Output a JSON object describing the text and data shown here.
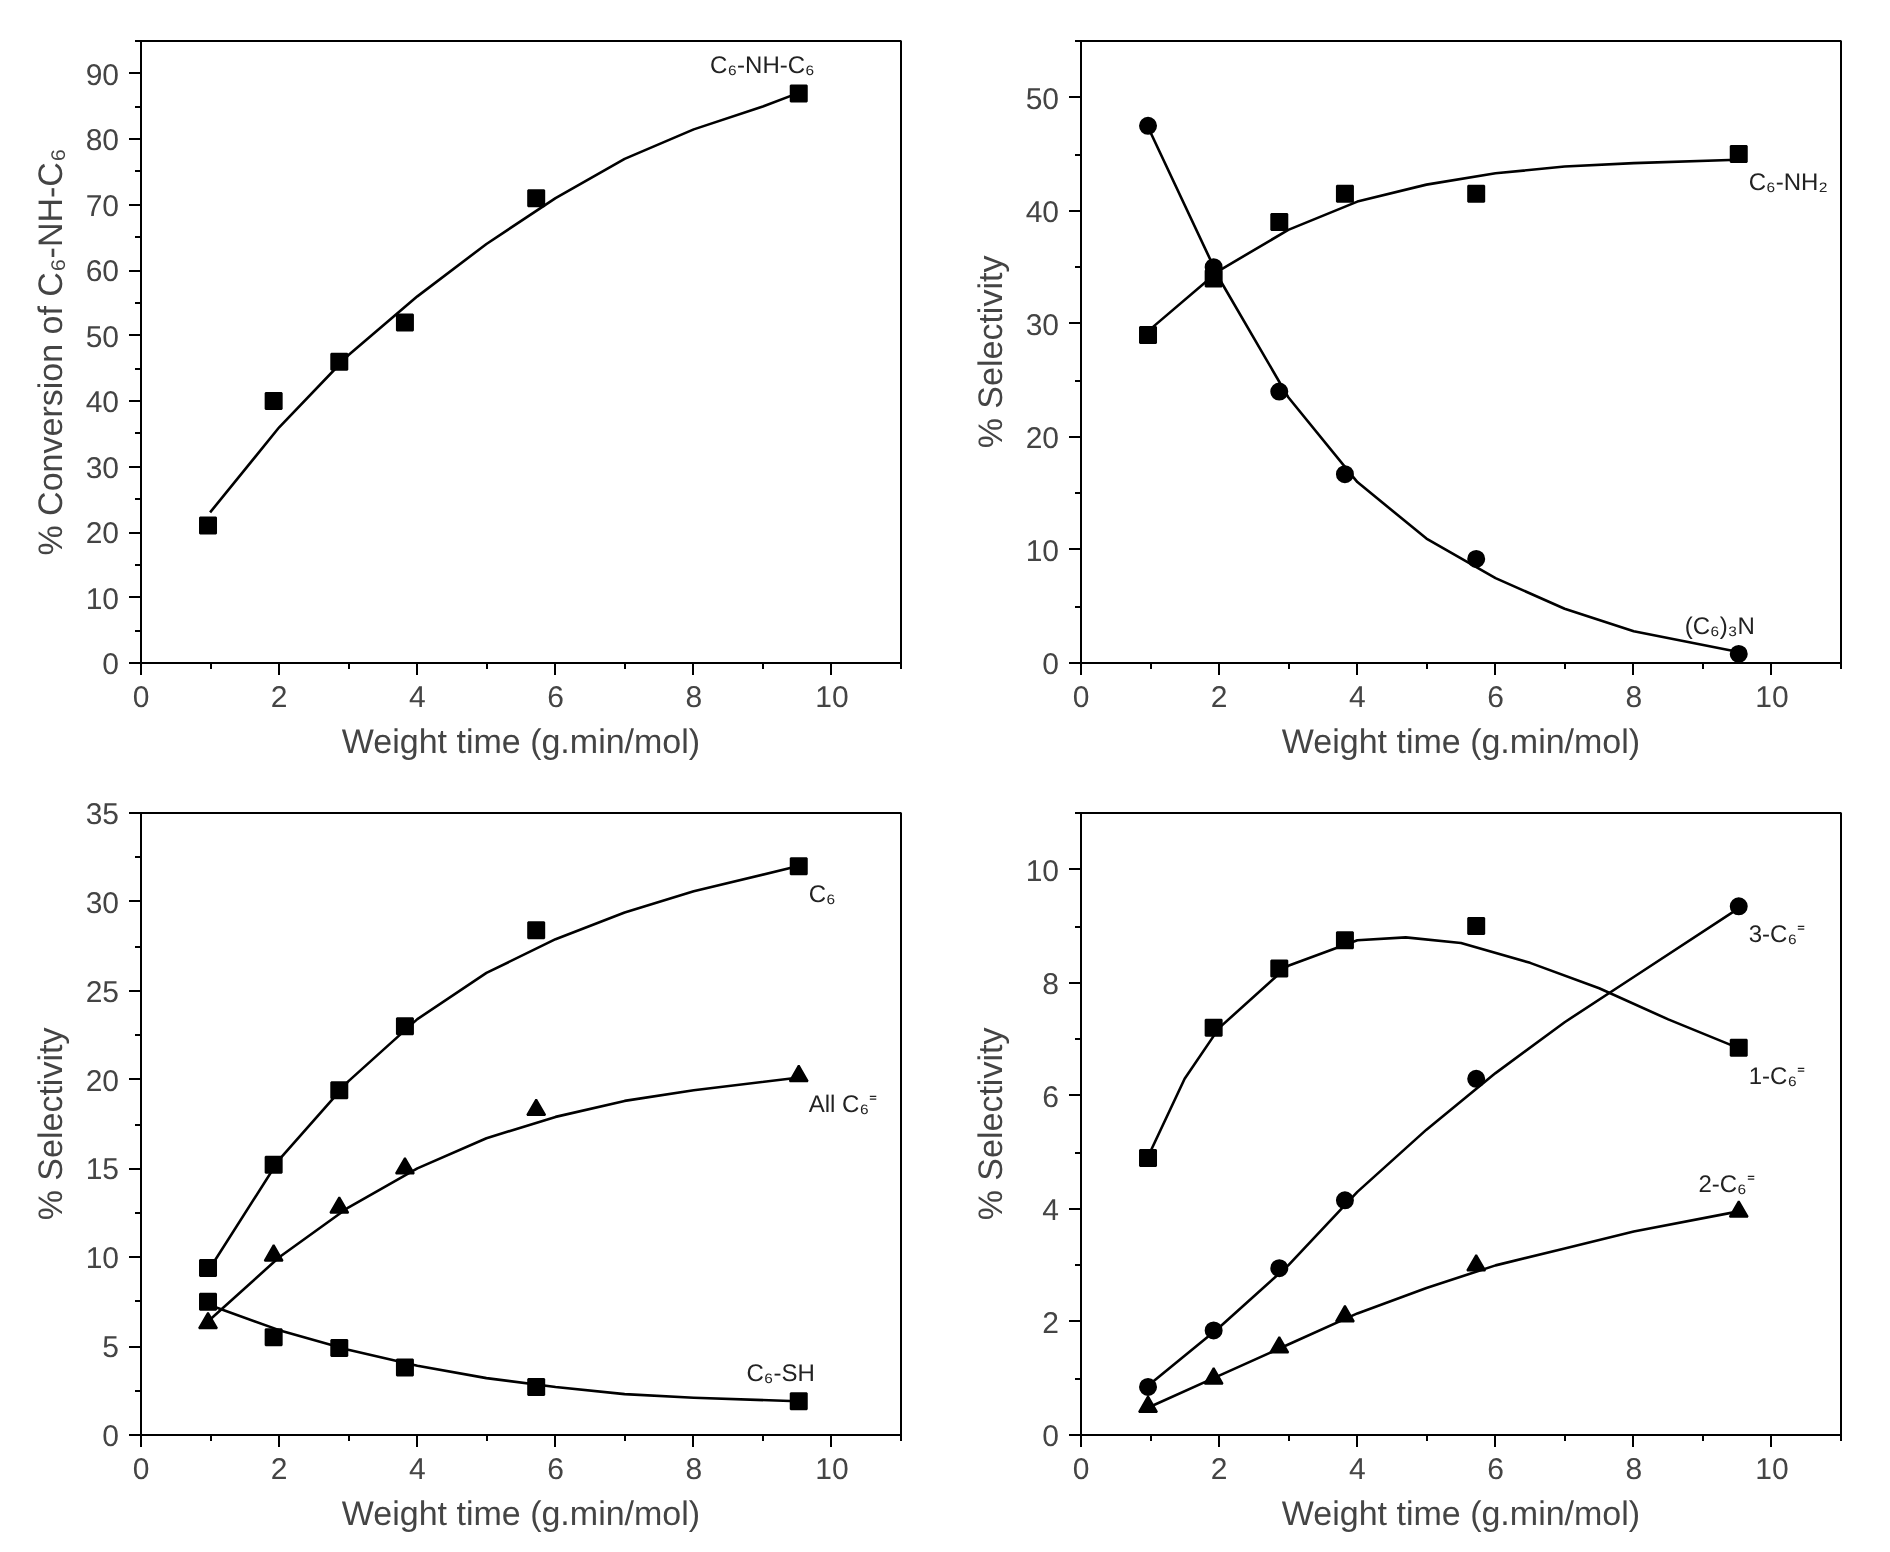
{
  "chart_data": [
    {
      "type": "scatter",
      "xlabel": "Weight time (g.min/mol)",
      "ylabel": "% Conversion of C₆-NH-C₆",
      "xlim": [
        0,
        11
      ],
      "ylim": [
        0,
        95
      ],
      "xticks": [
        0,
        2,
        4,
        6,
        8,
        10
      ],
      "yticks": [
        0,
        10,
        20,
        30,
        40,
        50,
        60,
        70,
        80,
        90
      ],
      "grid": false,
      "series": [
        {
          "name": "C₆-NH-C₆",
          "marker": "square",
          "color": "#000000",
          "x": [
            0.97,
            1.92,
            2.87,
            3.82,
            5.72,
            9.52
          ],
          "values": [
            21,
            40,
            46,
            52,
            71,
            87
          ]
        },
        {
          "type": "line",
          "color": "#000000",
          "x": [
            1,
            2,
            3,
            4,
            5,
            6,
            7,
            8,
            9,
            9.5
          ],
          "values": [
            23,
            36,
            47,
            56,
            64,
            71,
            77,
            81.5,
            85,
            87
          ]
        }
      ]
    },
    {
      "type": "scatter",
      "xlabel": "Weight time (g.min/mol)",
      "ylabel": "% Selectivity",
      "xlim": [
        0,
        11
      ],
      "ylim": [
        0,
        55
      ],
      "xticks": [
        0,
        2,
        4,
        6,
        8,
        10
      ],
      "yticks": [
        0,
        10,
        20,
        30,
        40,
        50
      ],
      "grid": false,
      "series": [
        {
          "name": "C₆-NH₂",
          "marker": "square",
          "color": "#000000",
          "x": [
            0.97,
            1.92,
            2.87,
            3.82,
            5.72,
            9.52
          ],
          "values": [
            29,
            34,
            39,
            41.5,
            41.5,
            45
          ]
        },
        {
          "name": "(C₆)₃N",
          "marker": "circle",
          "color": "#000000",
          "x": [
            0.97,
            1.92,
            2.87,
            3.82,
            5.72,
            9.52
          ],
          "values": [
            47.5,
            35,
            24,
            16.7,
            9.2,
            0.8
          ]
        },
        {
          "type": "line",
          "color": "#000000",
          "x": [
            1,
            2,
            3,
            4,
            5,
            6,
            7,
            8,
            9.5
          ],
          "values": [
            29.5,
            34.7,
            38.3,
            40.8,
            42.3,
            43.3,
            43.9,
            44.2,
            44.5
          ]
        },
        {
          "type": "line",
          "color": "#000000",
          "x": [
            1,
            2,
            3,
            4,
            5,
            6,
            7,
            8,
            9.5
          ],
          "values": [
            47,
            34,
            23.5,
            16,
            11,
            7.5,
            4.8,
            2.8,
            1
          ]
        }
      ]
    },
    {
      "type": "scatter",
      "xlabel": "Weight time (g.min/mol)",
      "ylabel": "% Selectivity",
      "xlim": [
        0,
        11
      ],
      "ylim": [
        0,
        35
      ],
      "xticks": [
        0,
        2,
        4,
        6,
        8,
        10
      ],
      "yticks": [
        0,
        5,
        10,
        15,
        20,
        25,
        30,
        35
      ],
      "grid": false,
      "series": [
        {
          "name": "C₆",
          "marker": "square",
          "color": "#000000",
          "x": [
            0.97,
            1.92,
            2.87,
            3.82,
            5.72,
            9.52
          ],
          "values": [
            9.4,
            15.2,
            19.4,
            23,
            28.4,
            32
          ]
        },
        {
          "name": "All C₆⁼",
          "marker": "triangle",
          "color": "#000000",
          "x": [
            0.97,
            1.92,
            2.87,
            3.82,
            5.72,
            9.52
          ],
          "values": [
            6.3,
            10.1,
            12.8,
            15,
            18.3,
            20.2
          ]
        },
        {
          "name": "C₆-SH",
          "marker": "square",
          "color": "#000000",
          "x": [
            0.97,
            1.92,
            2.87,
            3.82,
            5.72,
            9.52
          ],
          "values": [
            7.5,
            5.5,
            4.9,
            3.8,
            2.7,
            1.9
          ]
        },
        {
          "type": "line",
          "color": "#000000",
          "x": [
            1,
            2,
            3,
            4,
            5,
            6,
            7,
            8,
            9.5
          ],
          "values": [
            9.4,
            15.5,
            19.9,
            23.4,
            26,
            27.9,
            29.4,
            30.6,
            32
          ]
        },
        {
          "type": "line",
          "color": "#000000",
          "x": [
            1,
            2,
            3,
            4,
            5,
            6,
            7,
            8,
            9.5
          ],
          "values": [
            6.5,
            10,
            12.8,
            15,
            16.7,
            17.9,
            18.8,
            19.4,
            20.1
          ]
        },
        {
          "type": "line",
          "color": "#000000",
          "x": [
            1,
            2,
            3,
            4,
            5,
            6,
            7,
            8,
            9.5
          ],
          "values": [
            7.3,
            5.9,
            4.8,
            3.9,
            3.2,
            2.7,
            2.3,
            2.1,
            1.9
          ]
        }
      ]
    },
    {
      "type": "scatter",
      "xlabel": "Weight time (g.min/mol)",
      "ylabel": "% Selectivity",
      "xlim": [
        0,
        11
      ],
      "ylim": [
        0,
        11
      ],
      "xticks": [
        0,
        2,
        4,
        6,
        8,
        10
      ],
      "yticks": [
        0,
        2,
        4,
        6,
        8,
        10
      ],
      "grid": false,
      "series": [
        {
          "name": "1-C₆⁼",
          "marker": "square",
          "color": "#000000",
          "x": [
            0.97,
            1.92,
            2.87,
            3.82,
            5.72,
            9.52
          ],
          "values": [
            4.9,
            7.2,
            8.25,
            8.75,
            9.0,
            6.85
          ]
        },
        {
          "name": "3-C₆⁼",
          "marker": "circle",
          "color": "#000000",
          "x": [
            0.97,
            1.92,
            2.87,
            3.82,
            5.72,
            9.52
          ],
          "values": [
            0.85,
            1.85,
            2.95,
            4.15,
            6.3,
            9.35
          ]
        },
        {
          "name": "2-C₆⁼",
          "marker": "triangle",
          "color": "#000000",
          "x": [
            0.97,
            1.92,
            2.87,
            3.82,
            5.72,
            9.52
          ],
          "values": [
            0.5,
            1.0,
            1.55,
            2.1,
            3.0,
            3.95
          ]
        },
        {
          "type": "line",
          "color": "#000000",
          "x": [
            1,
            1.5,
            2,
            3,
            4,
            4.7,
            5.5,
            6.5,
            7.5,
            8.5,
            9.5
          ],
          "values": [
            5.0,
            6.3,
            7.2,
            8.3,
            8.75,
            8.8,
            8.7,
            8.35,
            7.9,
            7.35,
            6.85
          ]
        },
        {
          "type": "line",
          "color": "#000000",
          "x": [
            1,
            2,
            3,
            4,
            5,
            6,
            7,
            8,
            9.5
          ],
          "values": [
            0.9,
            1.9,
            3.0,
            4.3,
            5.4,
            6.4,
            7.3,
            8.1,
            9.3
          ]
        },
        {
          "type": "line",
          "color": "#000000",
          "x": [
            1,
            2,
            3,
            4,
            5,
            6,
            7,
            8,
            9.5
          ],
          "values": [
            0.5,
            1.05,
            1.6,
            2.15,
            2.6,
            3.0,
            3.3,
            3.6,
            3.95
          ]
        }
      ]
    }
  ]
}
